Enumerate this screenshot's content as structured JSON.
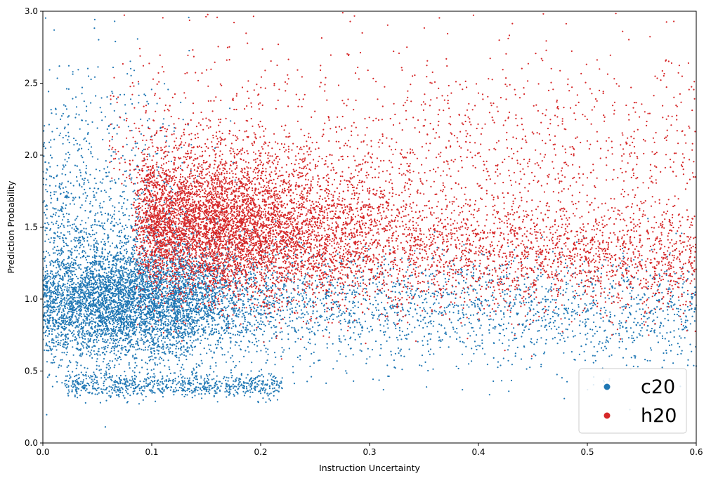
{
  "chart_data": {
    "type": "scatter",
    "title": "",
    "xlabel": "Instruction Uncertainty",
    "ylabel": "Prediction Probability",
    "xlim": [
      0.0,
      0.6
    ],
    "ylim": [
      0.0,
      3.0
    ],
    "x_ticks": [
      "0.0",
      "0.1",
      "0.2",
      "0.3",
      "0.4",
      "0.5",
      "0.6"
    ],
    "y_ticks": [
      "0.0",
      "0.5",
      "1.0",
      "1.5",
      "2.0",
      "2.5",
      "3.0"
    ],
    "grid": false,
    "legend_position": "bottom-right",
    "series": [
      {
        "name": "c20",
        "color": "#1f77b4",
        "description_of_distribution": "dense cluster near x 0.03-0.15, y 0.8-1.3; band near y 0.4 for x 0.02-0.22; spreads to x 0.6 around y 0.6-1.3",
        "representative_points": [
          [
            0.05,
            1.0
          ],
          [
            0.08,
            0.9
          ],
          [
            0.1,
            1.1
          ],
          [
            0.04,
            0.4
          ],
          [
            0.12,
            0.42
          ],
          [
            0.2,
            0.95
          ],
          [
            0.3,
            0.9
          ],
          [
            0.4,
            0.95
          ],
          [
            0.5,
            0.9
          ],
          [
            0.58,
            0.9
          ],
          [
            0.02,
            1.8
          ],
          [
            0.05,
            2.5
          ],
          [
            0.15,
            0.75
          ],
          [
            0.25,
            0.8
          ],
          [
            0.35,
            0.85
          ]
        ]
      },
      {
        "name": "h20",
        "color": "#d62728",
        "description_of_distribution": "dense cluster near x 0.1-0.25, y 1.2-1.8; spreads to x 0.6 around y 1.0-1.7; sparse up to y 3.0",
        "representative_points": [
          [
            0.1,
            1.6
          ],
          [
            0.15,
            1.5
          ],
          [
            0.2,
            1.45
          ],
          [
            0.25,
            1.4
          ],
          [
            0.3,
            1.35
          ],
          [
            0.35,
            1.35
          ],
          [
            0.4,
            1.3
          ],
          [
            0.45,
            1.3
          ],
          [
            0.5,
            1.3
          ],
          [
            0.58,
            1.25
          ],
          [
            0.08,
            2.2
          ],
          [
            0.12,
            2.6
          ],
          [
            0.3,
            2.0
          ],
          [
            0.45,
            2.0
          ],
          [
            0.55,
            1.9
          ]
        ]
      }
    ]
  }
}
